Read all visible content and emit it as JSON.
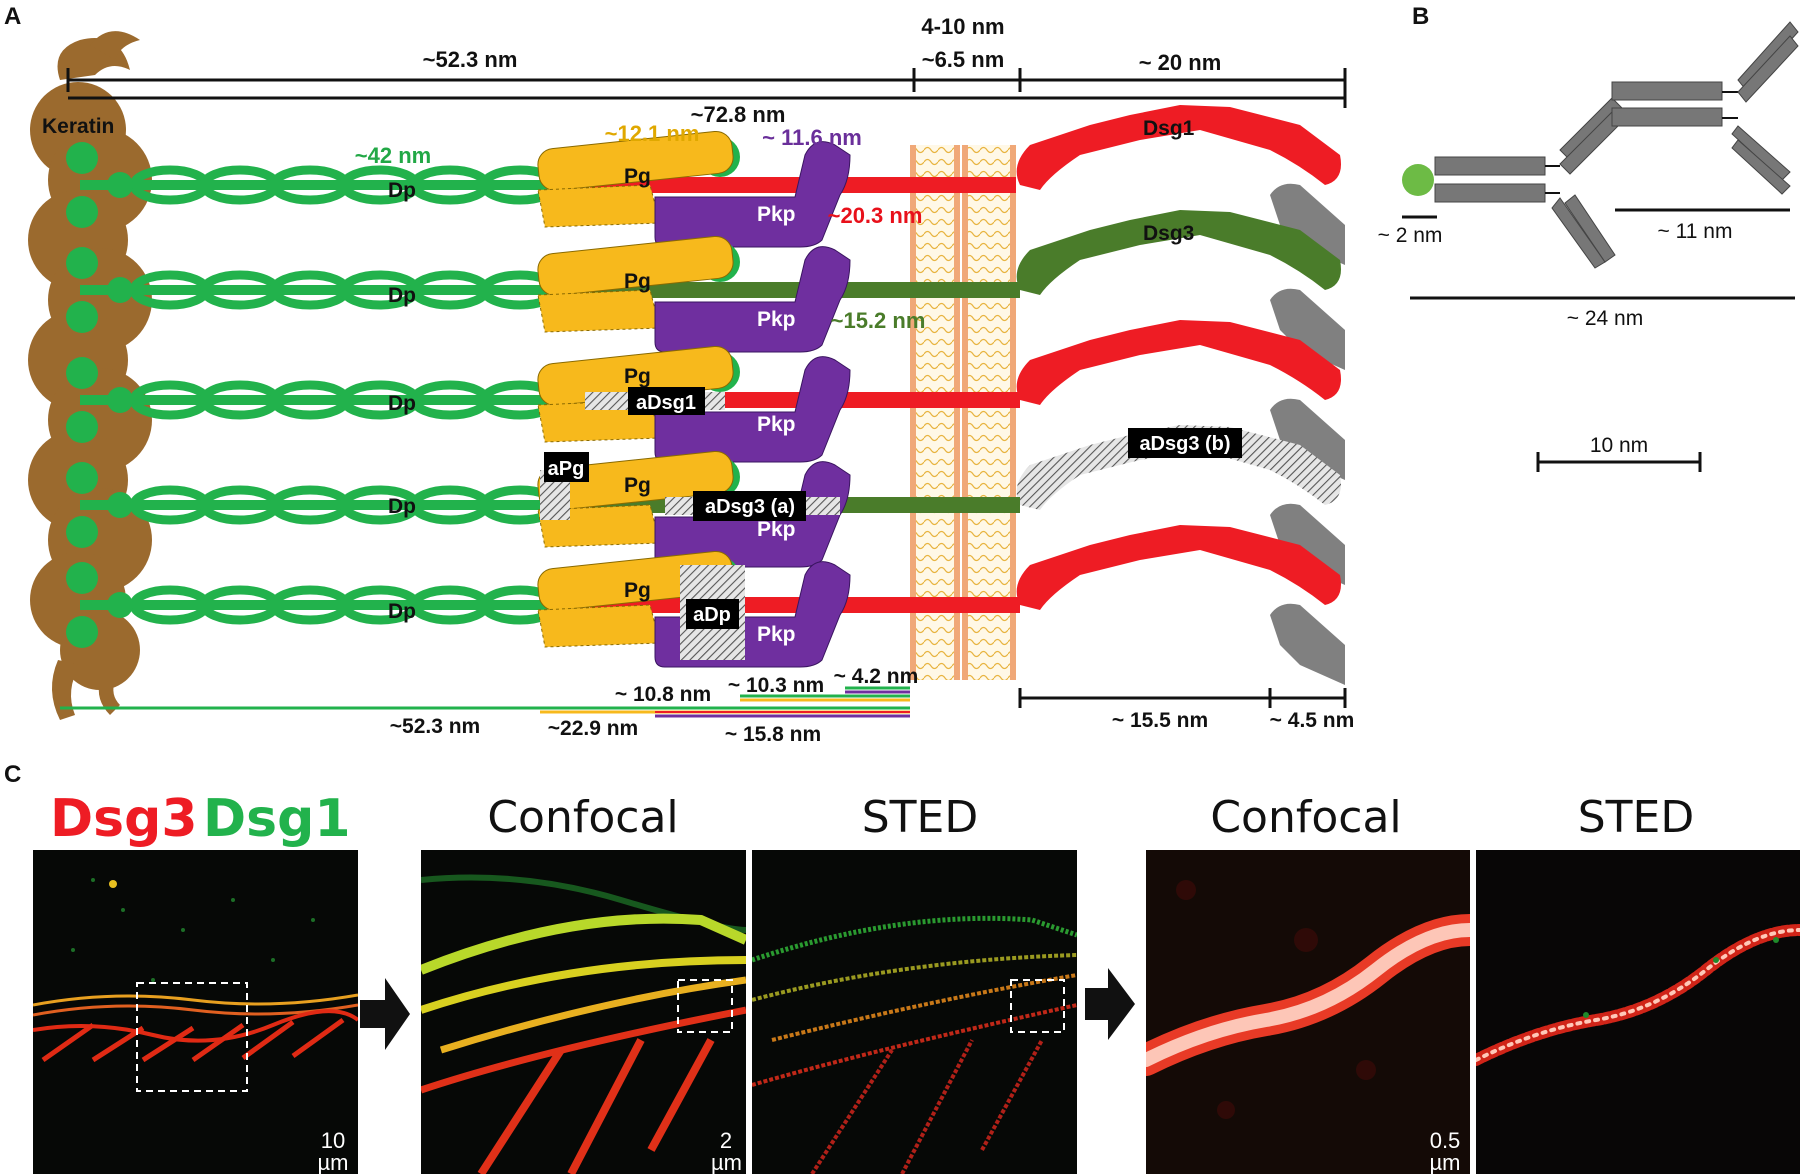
{
  "panels": {
    "a": "A",
    "b": "B",
    "c": "C"
  },
  "colors": {
    "keratin": "#9b6a2e",
    "dp": "#22b24c",
    "pg": "#f7b91c",
    "pkp": "#6f2f9f",
    "dsg1": "#ee1c24",
    "dsg3": "#4a7c2a",
    "membrane": "#f6c48c",
    "gray": "#808080",
    "dim_red": "#e8101a",
    "dim_green": "#22a846",
    "dim_gold": "#e0a800",
    "dim_purple": "#6a2f9a"
  },
  "panelA": {
    "keratin": "Keratin",
    "dp": "Dp",
    "pg": "Pg",
    "pkp": "Pkp",
    "dsg1": "Dsg1",
    "dsg3": "Dsg3",
    "antibodies": {
      "adsg1": "aDsg1",
      "apg": "aPg",
      "adsg3a": "aDsg3 (a)",
      "adsg3b": "aDsg3 (b)",
      "adp": "aDp"
    },
    "dims": {
      "top_52": "~52.3 nm",
      "top_4_10": "4-10 nm",
      "top_6_5": "~6.5 nm",
      "top_20": "~ 20 nm",
      "d72": "~72.8 nm",
      "d42": "~42 nm",
      "d12": "~12.1 nm",
      "d11_6": "~ 11.6 nm",
      "d20_3": "~20.3 nm",
      "d15_2": "~15.2 nm",
      "d4_2": "~ 4.2 nm",
      "d10_8": "~ 10.8 nm",
      "d10_3": "~ 10.3 nm",
      "bot_52": "~52.3 nm",
      "d22_9": "~22.9 nm",
      "d15_8": "~ 15.8 nm",
      "d15_5": "~ 15.5 nm",
      "d4_5": "~ 4.5 nm"
    }
  },
  "panelB": {
    "d2": "~ 2 nm",
    "d11": "~ 11 nm",
    "d24": "~ 24 nm",
    "scale": "10 nm"
  },
  "panelC": {
    "legend_dsg3": "Dsg3",
    "legend_dsg1": "Dsg1",
    "titles": [
      "Confocal",
      "STED",
      "Confocal",
      "STED"
    ],
    "scalebars": [
      {
        "value": "10",
        "unit": "µm"
      },
      {
        "value": "2",
        "unit": "µm"
      },
      {
        "value": "0.5",
        "unit": "µm"
      }
    ]
  }
}
